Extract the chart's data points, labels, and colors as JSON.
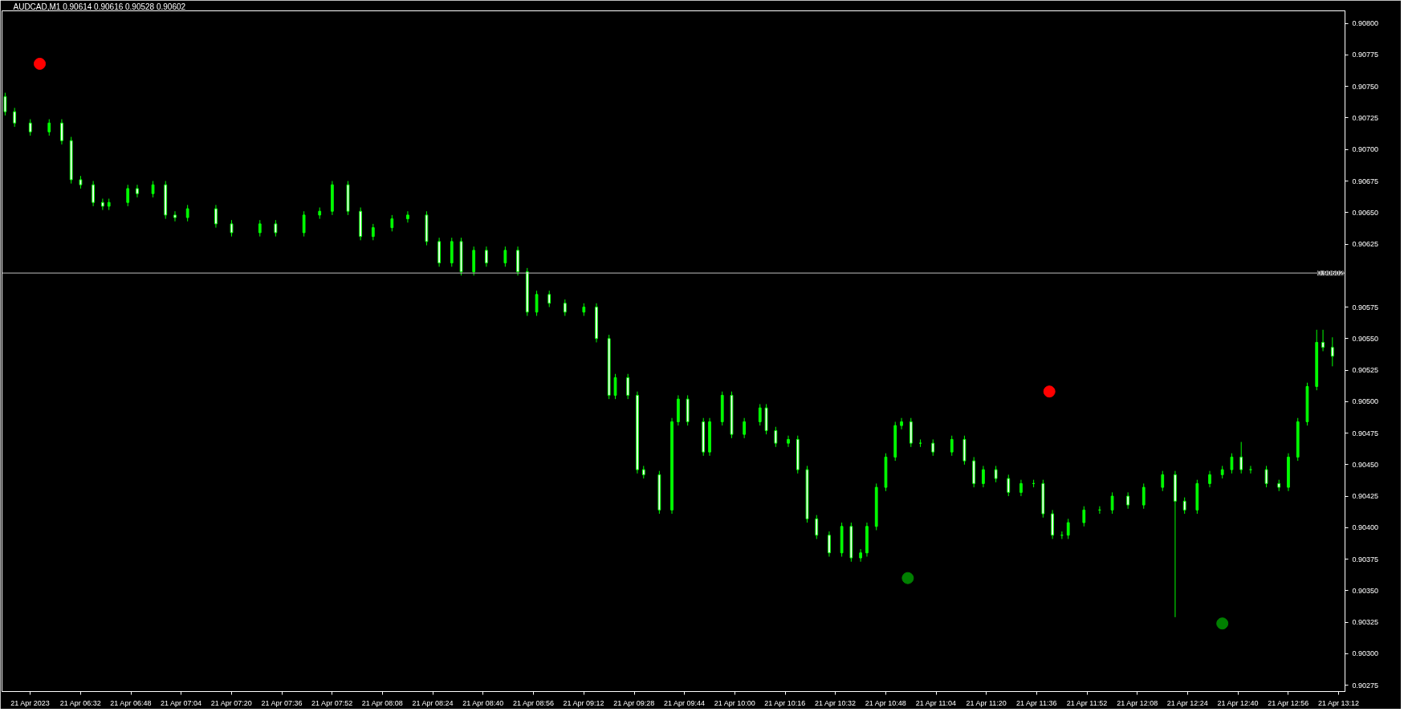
{
  "chart_data": {
    "type": "candlestick",
    "title": "AUDCAD,M1  0.90614 0.90616 0.90528 0.90602",
    "color": "#00ff00",
    "grid": false,
    "x": [
      "2023-04-21T06:08",
      "2023-04-21T06:11",
      "2023-04-21T06:16",
      "2023-04-21T06:22",
      "2023-04-21T06:26",
      "2023-04-21T06:29",
      "2023-04-21T06:32",
      "2023-04-21T06:36",
      "2023-04-21T06:39",
      "2023-04-21T06:41",
      "2023-04-21T06:47",
      "2023-04-21T06:50",
      "2023-04-21T06:55",
      "2023-04-21T06:59",
      "2023-04-21T07:02",
      "2023-04-21T07:06",
      "2023-04-21T07:15",
      "2023-04-21T07:20",
      "2023-04-21T07:29",
      "2023-04-21T07:34",
      "2023-04-21T07:43",
      "2023-04-21T07:48",
      "2023-04-21T07:52",
      "2023-04-21T07:57",
      "2023-04-21T08:01",
      "2023-04-21T08:05",
      "2023-04-21T08:11",
      "2023-04-21T08:16",
      "2023-04-21T08:22",
      "2023-04-21T08:26",
      "2023-04-21T08:30",
      "2023-04-21T08:33",
      "2023-04-21T08:37",
      "2023-04-21T08:41",
      "2023-04-21T08:47",
      "2023-04-21T08:51",
      "2023-04-21T08:54",
      "2023-04-21T08:57",
      "2023-04-21T09:01",
      "2023-04-21T09:06",
      "2023-04-21T09:12",
      "2023-04-21T09:16",
      "2023-04-21T09:20",
      "2023-04-21T09:22",
      "2023-04-21T09:26",
      "2023-04-21T09:29",
      "2023-04-21T09:31",
      "2023-04-21T09:36",
      "2023-04-21T09:40",
      "2023-04-21T09:42",
      "2023-04-21T09:45",
      "2023-04-21T09:50",
      "2023-04-21T09:52",
      "2023-04-21T09:56",
      "2023-04-21T09:59",
      "2023-04-21T10:03",
      "2023-04-21T10:08",
      "2023-04-21T10:10",
      "2023-04-21T10:13",
      "2023-04-21T10:17",
      "2023-04-21T10:20",
      "2023-04-21T10:23",
      "2023-04-21T10:26",
      "2023-04-21T10:30",
      "2023-04-21T10:34",
      "2023-04-21T10:37",
      "2023-04-21T10:40",
      "2023-04-21T10:42",
      "2023-04-21T10:45",
      "2023-04-21T10:48",
      "2023-04-21T10:51",
      "2023-04-21T10:53",
      "2023-04-21T10:56",
      "2023-04-21T10:59",
      "2023-04-21T11:03",
      "2023-04-21T11:09",
      "2023-04-21T11:13",
      "2023-04-21T11:16",
      "2023-04-21T11:19",
      "2023-04-21T11:23",
      "2023-04-21T11:27",
      "2023-04-21T11:31",
      "2023-04-21T11:35",
      "2023-04-21T11:38",
      "2023-04-21T11:41",
      "2023-04-21T11:44",
      "2023-04-21T11:46",
      "2023-04-21T11:51",
      "2023-04-21T11:56",
      "2023-04-21T12:00",
      "2023-04-21T12:05",
      "2023-04-21T12:10",
      "2023-04-21T12:16",
      "2023-04-21T12:20",
      "2023-04-21T12:23",
      "2023-04-21T12:27",
      "2023-04-21T12:31",
      "2023-04-21T12:35",
      "2023-04-21T12:38",
      "2023-04-21T12:41",
      "2023-04-21T12:44",
      "2023-04-21T12:49",
      "2023-04-21T12:53",
      "2023-04-21T12:56",
      "2023-04-21T12:59",
      "2023-04-21T13:02",
      "2023-04-21T13:05",
      "2023-04-21T13:07",
      "2023-04-21T13:10"
    ],
    "ohlc": [
      [
        0.90742,
        0.90745,
        0.90727,
        0.9073
      ],
      [
        0.9073,
        0.90733,
        0.90718,
        0.90721
      ],
      [
        0.90721,
        0.90724,
        0.90711,
        0.90714
      ],
      [
        0.90714,
        0.90724,
        0.90711,
        0.90721
      ],
      [
        0.90721,
        0.90724,
        0.90704,
        0.90707
      ],
      [
        0.90707,
        0.9071,
        0.90673,
        0.90676
      ],
      [
        0.90676,
        0.90679,
        0.90669,
        0.90672
      ],
      [
        0.90672,
        0.90675,
        0.90655,
        0.90658
      ],
      [
        0.90658,
        0.90661,
        0.90652,
        0.90655
      ],
      [
        0.90655,
        0.90661,
        0.90652,
        0.90658
      ],
      [
        0.90658,
        0.90672,
        0.90655,
        0.90669
      ],
      [
        0.90669,
        0.90672,
        0.90662,
        0.90665
      ],
      [
        0.90665,
        0.90675,
        0.90662,
        0.90672
      ],
      [
        0.90672,
        0.90675,
        0.90645,
        0.90648
      ],
      [
        0.90648,
        0.90651,
        0.90643,
        0.90646
      ],
      [
        0.90646,
        0.90656,
        0.90643,
        0.90653
      ],
      [
        0.90653,
        0.90656,
        0.90638,
        0.90641
      ],
      [
        0.90641,
        0.90644,
        0.90631,
        0.90634
      ],
      [
        0.90634,
        0.90644,
        0.90631,
        0.90641
      ],
      [
        0.90641,
        0.90644,
        0.90631,
        0.90634
      ],
      [
        0.90634,
        0.90651,
        0.90631,
        0.90648
      ],
      [
        0.90648,
        0.90654,
        0.90645,
        0.90651
      ],
      [
        0.90651,
        0.90675,
        0.90648,
        0.90672
      ],
      [
        0.90672,
        0.90675,
        0.90648,
        0.90651
      ],
      [
        0.90651,
        0.90654,
        0.90628,
        0.90631
      ],
      [
        0.90631,
        0.90641,
        0.90628,
        0.90638
      ],
      [
        0.90638,
        0.90648,
        0.90635,
        0.90645
      ],
      [
        0.90645,
        0.90651,
        0.90642,
        0.90648
      ],
      [
        0.90648,
        0.90651,
        0.90624,
        0.90627
      ],
      [
        0.90627,
        0.9063,
        0.90607,
        0.9061
      ],
      [
        0.9061,
        0.9063,
        0.90607,
        0.90627
      ],
      [
        0.90627,
        0.9063,
        0.906,
        0.90603
      ],
      [
        0.90603,
        0.90623,
        0.906,
        0.9062
      ],
      [
        0.9062,
        0.90623,
        0.90607,
        0.9061
      ],
      [
        0.9061,
        0.90623,
        0.90607,
        0.9062
      ],
      [
        0.9062,
        0.90623,
        0.906,
        0.90603
      ],
      [
        0.90603,
        0.90606,
        0.90568,
        0.90571
      ],
      [
        0.90571,
        0.90588,
        0.90568,
        0.90585
      ],
      [
        0.90585,
        0.90588,
        0.90575,
        0.90578
      ],
      [
        0.90578,
        0.90581,
        0.90568,
        0.90571
      ],
      [
        0.90571,
        0.90578,
        0.90568,
        0.90575
      ],
      [
        0.90575,
        0.90578,
        0.90547,
        0.9055
      ],
      [
        0.9055,
        0.90553,
        0.90502,
        0.90505
      ],
      [
        0.90505,
        0.90522,
        0.90502,
        0.90519
      ],
      [
        0.90519,
        0.90522,
        0.90502,
        0.90505
      ],
      [
        0.90505,
        0.90508,
        0.90443,
        0.90446
      ],
      [
        0.90446,
        0.90449,
        0.90439,
        0.90442
      ],
      [
        0.90442,
        0.90445,
        0.90411,
        0.90414
      ],
      [
        0.90414,
        0.90487,
        0.90411,
        0.90484
      ],
      [
        0.90484,
        0.90505,
        0.90481,
        0.90502
      ],
      [
        0.90502,
        0.90505,
        0.90481,
        0.90484
      ],
      [
        0.90484,
        0.90487,
        0.90457,
        0.9046
      ],
      [
        0.9046,
        0.90487,
        0.90457,
        0.90484
      ],
      [
        0.90484,
        0.90508,
        0.90481,
        0.90505
      ],
      [
        0.90505,
        0.90508,
        0.90471,
        0.90474
      ],
      [
        0.90474,
        0.90487,
        0.90471,
        0.90484
      ],
      [
        0.90484,
        0.90498,
        0.90481,
        0.90495
      ],
      [
        0.90495,
        0.90498,
        0.90474,
        0.90477
      ],
      [
        0.90477,
        0.9048,
        0.90464,
        0.90467
      ],
      [
        0.90467,
        0.90473,
        0.90464,
        0.9047
      ],
      [
        0.9047,
        0.90473,
        0.90443,
        0.90446
      ],
      [
        0.90446,
        0.90449,
        0.90404,
        0.90407
      ],
      [
        0.90407,
        0.9041,
        0.90391,
        0.90394
      ],
      [
        0.90394,
        0.90397,
        0.90377,
        0.9038
      ],
      [
        0.9038,
        0.90404,
        0.90377,
        0.90401
      ],
      [
        0.90401,
        0.90404,
        0.90373,
        0.90376
      ],
      [
        0.90376,
        0.90383,
        0.90373,
        0.9038
      ],
      [
        0.9038,
        0.90404,
        0.90377,
        0.90401
      ],
      [
        0.90401,
        0.90435,
        0.90398,
        0.90432
      ],
      [
        0.90432,
        0.90459,
        0.90429,
        0.90456
      ],
      [
        0.90456,
        0.90484,
        0.90453,
        0.90481
      ],
      [
        0.90481,
        0.90487,
        0.90478,
        0.90484
      ],
      [
        0.90484,
        0.90487,
        0.90464,
        0.90467
      ],
      [
        0.90467,
        0.9047,
        0.90464,
        0.90467
      ],
      [
        0.90467,
        0.9047,
        0.90457,
        0.9046
      ],
      [
        0.9046,
        0.90473,
        0.90457,
        0.9047
      ],
      [
        0.9047,
        0.90473,
        0.9045,
        0.90453
      ],
      [
        0.90453,
        0.90456,
        0.90432,
        0.90435
      ],
      [
        0.90435,
        0.90449,
        0.90432,
        0.90446
      ],
      [
        0.90446,
        0.90449,
        0.90436,
        0.90439
      ],
      [
        0.90439,
        0.90442,
        0.90425,
        0.90428
      ],
      [
        0.90428,
        0.90438,
        0.90425,
        0.90435
      ],
      [
        0.90435,
        0.90438,
        0.90432,
        0.90435
      ],
      [
        0.90435,
        0.90438,
        0.90408,
        0.90411
      ],
      [
        0.90411,
        0.90414,
        0.90391,
        0.90394
      ],
      [
        0.90394,
        0.90397,
        0.90391,
        0.90394
      ],
      [
        0.90394,
        0.90407,
        0.90391,
        0.90404
      ],
      [
        0.90404,
        0.90417,
        0.90401,
        0.90414
      ],
      [
        0.90414,
        0.90417,
        0.90411,
        0.90414
      ],
      [
        0.90414,
        0.90428,
        0.90411,
        0.90425
      ],
      [
        0.90425,
        0.90428,
        0.90415,
        0.90418
      ],
      [
        0.90418,
        0.90435,
        0.90415,
        0.90432
      ],
      [
        0.90432,
        0.90445,
        0.90429,
        0.90442
      ],
      [
        0.90442,
        0.90445,
        0.90329,
        0.90421
      ],
      [
        0.90421,
        0.90424,
        0.90411,
        0.90414
      ],
      [
        0.90414,
        0.90438,
        0.90411,
        0.90435
      ],
      [
        0.90435,
        0.90445,
        0.90432,
        0.90442
      ],
      [
        0.90442,
        0.90449,
        0.90439,
        0.90446
      ],
      [
        0.90446,
        0.90459,
        0.90443,
        0.90456
      ],
      [
        0.90456,
        0.90468,
        0.90443,
        0.90446
      ],
      [
        0.90446,
        0.90449,
        0.90443,
        0.90446
      ],
      [
        0.90446,
        0.90449,
        0.90432,
        0.90435
      ],
      [
        0.90435,
        0.90438,
        0.90429,
        0.90432
      ],
      [
        0.90432,
        0.90459,
        0.90429,
        0.90456
      ],
      [
        0.90456,
        0.90487,
        0.90453,
        0.90484
      ],
      [
        0.90484,
        0.90515,
        0.90481,
        0.90512
      ],
      [
        0.90512,
        0.90557,
        0.90509,
        0.90547
      ],
      [
        0.90547,
        0.90557,
        0.9054,
        0.90543
      ],
      [
        0.90543,
        0.90551,
        0.90528,
        0.90536
      ]
    ],
    "series": [
      {
        "type": "scatter",
        "color": "#ff0000",
        "marker": "circle",
        "x": [
          "2023-04-21T06:19",
          "2023-04-21T11:40"
        ],
        "values": [
          0.90768,
          0.90508
        ]
      },
      {
        "type": "scatter",
        "color": "#008000",
        "marker": "circle",
        "x": [
          "2023-04-21T10:55",
          "2023-04-21T12:35"
        ],
        "values": [
          0.9036,
          0.90324
        ]
      }
    ],
    "ref_lines": [
      {
        "axis": "y",
        "value": 0.90602,
        "label": "0.90602",
        "color": "#c0c0c0"
      }
    ],
    "xlim": [
      "2023-04-21T06:07",
      "2023-04-21T13:14"
    ],
    "xticks": [
      {
        "value": "2023-04-21T06:16",
        "label": "21 Apr 2023"
      },
      {
        "value": "2023-04-21T06:32",
        "label": "21 Apr 06:32"
      },
      {
        "value": "2023-04-21T06:48",
        "label": "21 Apr 06:48"
      },
      {
        "value": "2023-04-21T07:04",
        "label": "21 Apr 07:04"
      },
      {
        "value": "2023-04-21T07:20",
        "label": "21 Apr 07:20"
      },
      {
        "value": "2023-04-21T07:36",
        "label": "21 Apr 07:36"
      },
      {
        "value": "2023-04-21T07:52",
        "label": "21 Apr 07:52"
      },
      {
        "value": "2023-04-21T08:08",
        "label": "21 Apr 08:08"
      },
      {
        "value": "2023-04-21T08:24",
        "label": "21 Apr 08:24"
      },
      {
        "value": "2023-04-21T08:40",
        "label": "21 Apr 08:40"
      },
      {
        "value": "2023-04-21T08:56",
        "label": "21 Apr 08:56"
      },
      {
        "value": "2023-04-21T09:12",
        "label": "21 Apr 09:12"
      },
      {
        "value": "2023-04-21T09:28",
        "label": "21 Apr 09:28"
      },
      {
        "value": "2023-04-21T09:44",
        "label": "21 Apr 09:44"
      },
      {
        "value": "2023-04-21T10:00",
        "label": "21 Apr 10:00"
      },
      {
        "value": "2023-04-21T10:16",
        "label": "21 Apr 10:16"
      },
      {
        "value": "2023-04-21T10:32",
        "label": "21 Apr 10:32"
      },
      {
        "value": "2023-04-21T10:48",
        "label": "21 Apr 10:48"
      },
      {
        "value": "2023-04-21T11:04",
        "label": "21 Apr 11:04"
      },
      {
        "value": "2023-04-21T11:20",
        "label": "21 Apr 11:20"
      },
      {
        "value": "2023-04-21T11:36",
        "label": "21 Apr 11:36"
      },
      {
        "value": "2023-04-21T11:52",
        "label": "21 Apr 11:52"
      },
      {
        "value": "2023-04-21T12:08",
        "label": "21 Apr 12:08"
      },
      {
        "value": "2023-04-21T12:24",
        "label": "21 Apr 12:24"
      },
      {
        "value": "2023-04-21T12:40",
        "label": "21 Apr 12:40"
      },
      {
        "value": "2023-04-21T12:56",
        "label": "21 Apr 12:56"
      },
      {
        "value": "2023-04-21T13:12",
        "label": "21 Apr 13:12"
      }
    ],
    "ylim": [
      0.9027,
      0.9081
    ],
    "yticks": [
      0.90275,
      {
        "value": 0.903,
        "label": "0.90300"
      },
      0.90325,
      {
        "value": 0.9035,
        "label": "0.90350"
      },
      0.90375,
      {
        "value": 0.904,
        "label": "0.90400"
      },
      0.90425,
      {
        "value": 0.9045,
        "label": "0.90450"
      },
      0.90475,
      {
        "value": 0.905,
        "label": "0.90500"
      },
      0.90525,
      {
        "value": 0.9055,
        "label": "0.90550"
      },
      0.90575,
      0.90625,
      {
        "value": 0.9065,
        "label": "0.90650"
      },
      0.90675,
      {
        "value": 0.907,
        "label": "0.90700"
      },
      0.90725,
      {
        "value": 0.9075,
        "label": "0.90750"
      },
      0.90775,
      {
        "value": 0.908,
        "label": "0.90800"
      }
    ]
  }
}
